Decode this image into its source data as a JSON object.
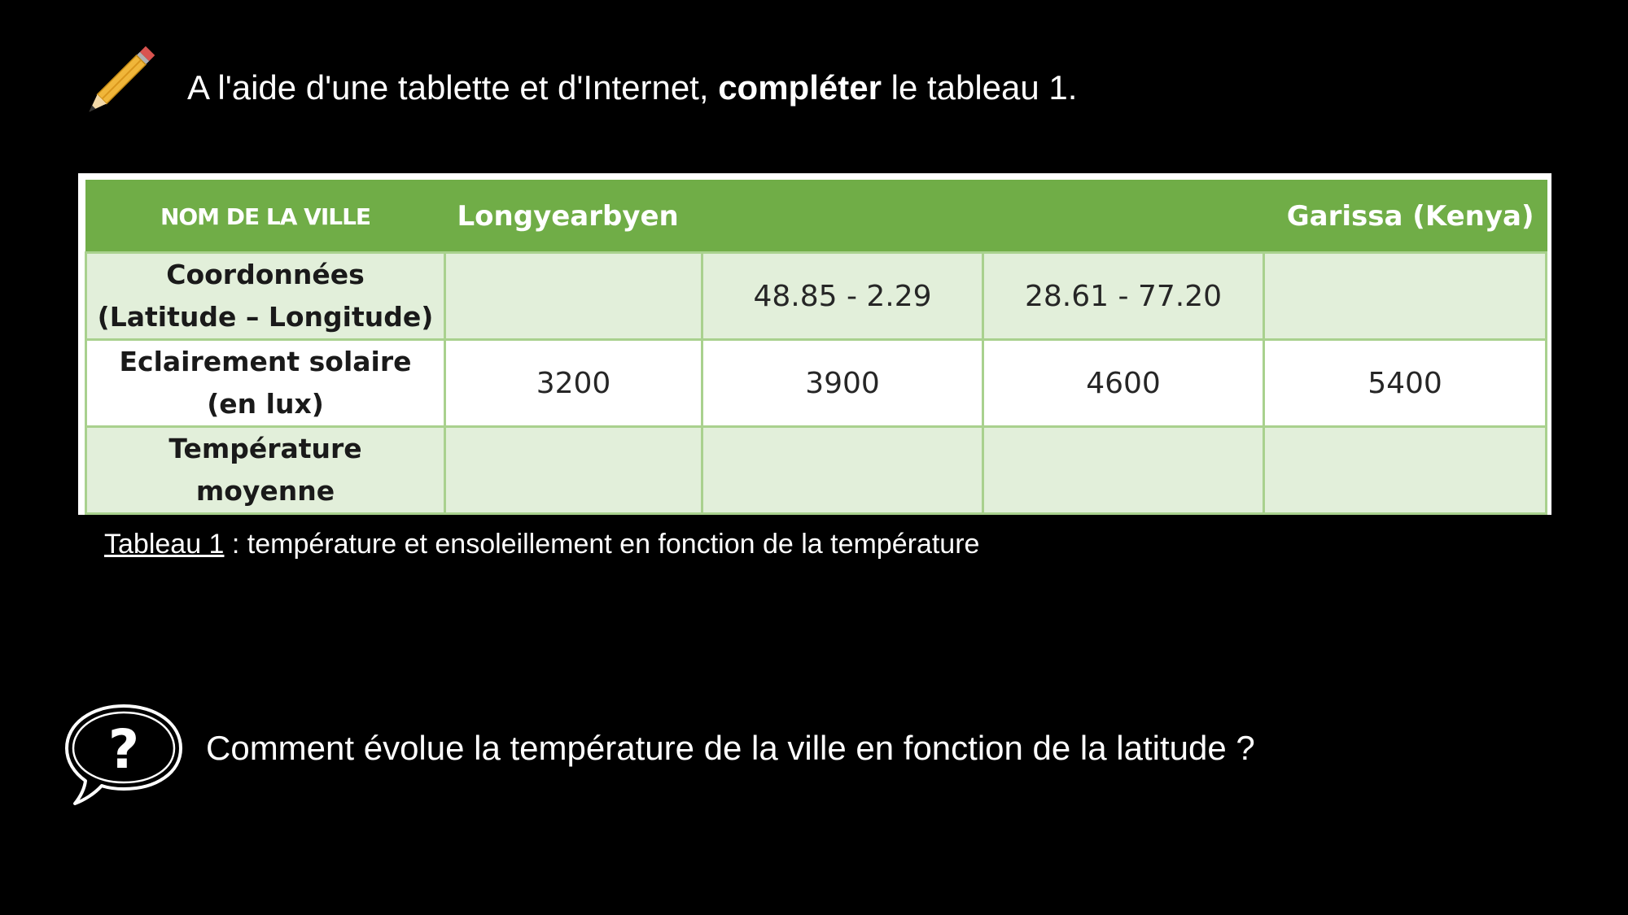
{
  "instruction": {
    "before": "A l'aide d'une tablette et d'Internet, ",
    "bold": "compléter",
    "after": " le tableau 1."
  },
  "table": {
    "headers": [
      "NOM DE LA VILLE",
      "Longyearbyen",
      "",
      "",
      "Garissa (Kenya)"
    ],
    "rows": [
      {
        "label_line1": "Coordonnées",
        "label_line2": "(Latitude – Longitude)",
        "cells": [
          "",
          "48.85 - 2.29",
          "28.61 - 77.20",
          ""
        ]
      },
      {
        "label_line1": "Eclairement solaire",
        "label_line2": "(en lux)",
        "cells": [
          "3200",
          "3900",
          "4600",
          "5400"
        ]
      },
      {
        "label_line1": "Température",
        "label_line2": "moyenne",
        "cells": [
          "",
          "",
          "",
          ""
        ]
      }
    ]
  },
  "caption": {
    "label": "Tableau 1",
    "text": " : température et ensoleillement en fonction de la température"
  },
  "question": {
    "text": "Comment évolue la température de la ville en fonction de la latitude ?"
  },
  "icons": {
    "instruction_icon": "pencil-icon",
    "question_icon": "question-bubble-icon"
  },
  "colors": {
    "header_green": "#70ad47",
    "band_green": "#e2efda",
    "grid_green": "#a9d18e"
  }
}
